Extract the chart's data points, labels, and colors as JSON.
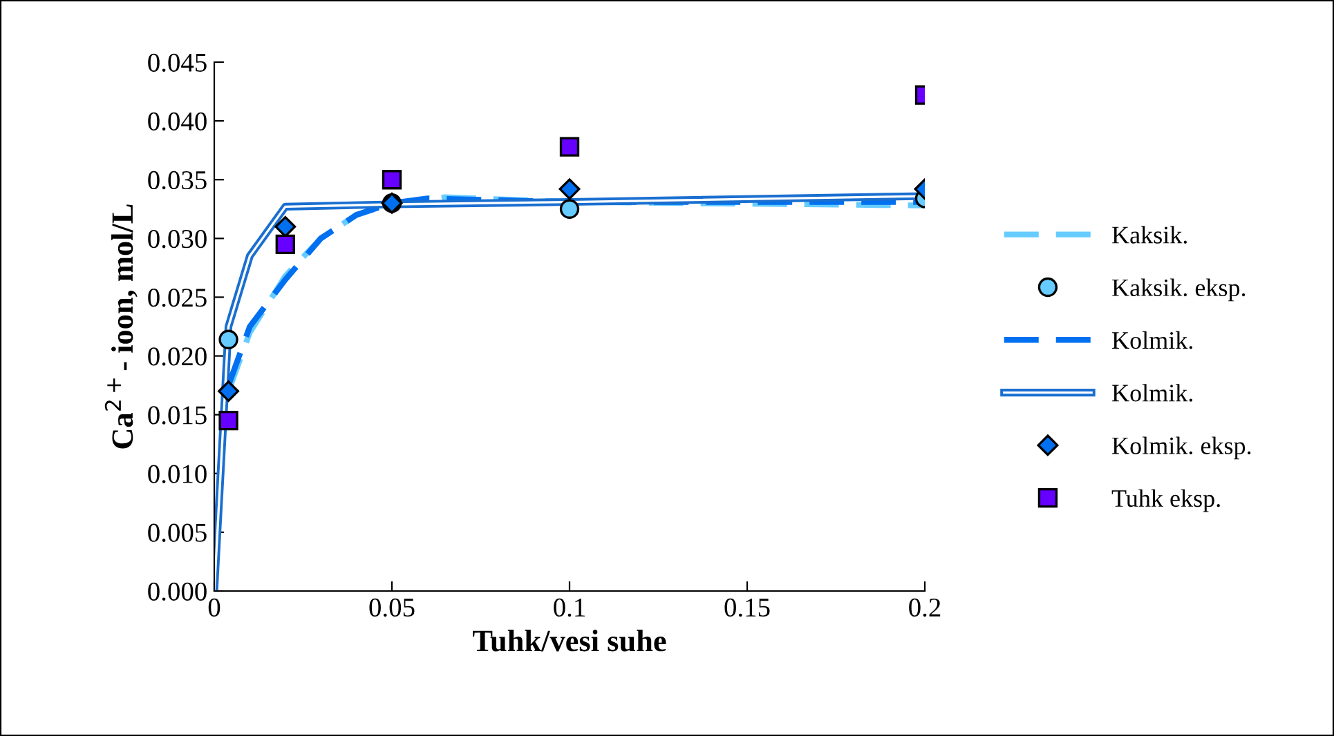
{
  "chart_data": {
    "type": "line",
    "xlabel": "Tuhk/vesi suhe",
    "ylabel": "Ca$^{2+}$- ioon, mol/L",
    "xlim": [
      0,
      0.2
    ],
    "xticks": [
      0,
      {
        "value": 0.05,
        "label": "0.05"
      },
      {
        "value": 0.1,
        "label": "0.1"
      },
      {
        "value": 0.15,
        "label": "0.15"
      },
      {
        "value": 0.2,
        "label": "0.2"
      }
    ],
    "ylim": [
      0,
      0.045
    ],
    "yticks": [
      {
        "value": 0,
        "label": "0.000"
      },
      {
        "value": 0.005,
        "label": "0.005"
      },
      {
        "value": 0.01,
        "label": "0.010"
      },
      {
        "value": 0.015,
        "label": "0.015"
      },
      {
        "value": 0.02,
        "label": "0.020"
      },
      {
        "value": 0.025,
        "label": "0.025"
      },
      {
        "value": 0.03,
        "label": "0.030"
      },
      {
        "value": 0.035,
        "label": "0.035"
      },
      {
        "value": 0.04,
        "label": "0.040"
      },
      {
        "value": 0.045,
        "label": "0.045"
      }
    ],
    "grid": false,
    "legend": "right",
    "series": [
      {
        "name": "Kaksik.",
        "line_style": "dashed",
        "marker": "none",
        "color": "#66ccff",
        "x": [
          0.004,
          0.01,
          0.02,
          0.03,
          0.04,
          0.05,
          0.065,
          0.1,
          0.2
        ],
        "values": [
          0.017,
          0.022,
          0.0268,
          0.03,
          0.032,
          0.033,
          0.0335,
          0.0331,
          0.0328
        ]
      },
      {
        "name": "Kaksik. eksp.",
        "type": "scatter",
        "marker": "circle",
        "color": "#66ccff",
        "x": [
          0.004,
          0.05,
          0.1,
          0.2
        ],
        "values": [
          0.0214,
          0.033,
          0.0325,
          0.0334
        ]
      },
      {
        "name": "Kolmik.",
        "line_style": "dashed",
        "marker": "none",
        "color": "#0070f0",
        "x": [
          0.004,
          0.01,
          0.02,
          0.03,
          0.04,
          0.05,
          0.06,
          0.1,
          0.2
        ],
        "values": [
          0.0175,
          0.0225,
          0.0265,
          0.03,
          0.032,
          0.033,
          0.0334,
          0.0331,
          0.0331
        ]
      },
      {
        "name": "Kolmik.",
        "line_style": "solid",
        "marker": "none",
        "color": "#1a6fd0",
        "x": [
          0,
          0.004,
          0.005,
          0.01,
          0.02,
          0.05,
          0.1,
          0.2
        ],
        "values": [
          0,
          0.0225,
          0.0235,
          0.0285,
          0.0327,
          0.0329,
          0.0331,
          0.0336
        ]
      },
      {
        "name": "Kolmik. eksp.",
        "type": "scatter",
        "marker": "diamond",
        "color": "#0070f0",
        "x": [
          0.004,
          0.02,
          0.05,
          0.1,
          0.2
        ],
        "values": [
          0.017,
          0.031,
          0.033,
          0.0342,
          0.0342
        ]
      },
      {
        "name": "Tuhk eksp.",
        "type": "scatter",
        "marker": "square",
        "color": "#6600ff",
        "x": [
          0.004,
          0.02,
          0.05,
          0.1,
          0.2
        ],
        "values": [
          0.0145,
          0.0295,
          0.035,
          0.0378,
          0.0422
        ]
      }
    ]
  }
}
